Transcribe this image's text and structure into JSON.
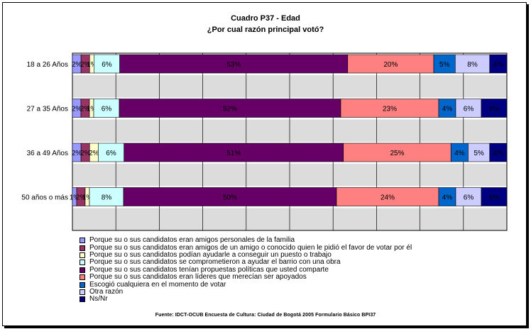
{
  "title": "Cuadro P37 - Edad",
  "subtitle": "¿Por cual razón principal votó?",
  "source": "Fuente: IDCT-OCUB Encuesta de Cultura: Ciudad de Bogotá 2005 Formulario Básico BPI37",
  "chart_data": {
    "type": "bar",
    "orientation": "horizontal",
    "stacked": "percent",
    "categories": [
      "18 a 26 Años",
      "27 a 35 Años",
      "36 a 49 Años",
      "50 años o más"
    ],
    "series": [
      {
        "name": "Porque su o sus candidatos eran amigos personales de la familia",
        "color": "#9999ff",
        "values": [
          2,
          2,
          2,
          1
        ],
        "labels": [
          "2%",
          "2%",
          "2%",
          "1%"
        ]
      },
      {
        "name": "Porque su o sus candidatos eran amigos de un amigo o conocido quien le pidió el favor de votar por él",
        "color": "#993366",
        "values": [
          2,
          2,
          2,
          2
        ],
        "labels": [
          "2%",
          "2%",
          "2%",
          "2%"
        ]
      },
      {
        "name": "Porque su o sus candidatos podían ayudarle a conseguir un puesto o trabajo",
        "color": "#ffffcc",
        "values": [
          1,
          1,
          2,
          1
        ],
        "labels": [
          "1%",
          "1%",
          "2%",
          "1%"
        ]
      },
      {
        "name": "Porque su o sus candidatos se comprometieron a ayudar el barrio con una obra",
        "color": "#ccffff",
        "values": [
          6,
          6,
          6,
          8
        ],
        "labels": [
          "6%",
          "6%",
          "6%",
          "8%"
        ]
      },
      {
        "name": "Porque su o sus candidatos tenían propuestas políticas que usted comparte",
        "color": "#660066",
        "values": [
          53,
          52,
          51,
          50
        ],
        "labels": [
          "53%",
          "52%",
          "51%",
          "50%"
        ]
      },
      {
        "name": "Porque su o sus candidatos eran líderes que merecían ser apoyados",
        "color": "#ff8080",
        "values": [
          20,
          23,
          25,
          24
        ],
        "labels": [
          "20%",
          "23%",
          "25%",
          "24%"
        ]
      },
      {
        "name": "Escogió cualquiera en el momento de votar",
        "color": "#0066cc",
        "values": [
          5,
          4,
          4,
          4
        ],
        "labels": [
          "5%",
          "4%",
          "4%",
          "4%"
        ]
      },
      {
        "name": "Otra razón",
        "color": "#ccccff",
        "values": [
          8,
          6,
          5,
          6
        ],
        "labels": [
          "8%",
          "6%",
          "5%",
          "6%"
        ]
      },
      {
        "name": "Ns/Nr",
        "color": "#000080",
        "values": [
          4,
          6,
          4,
          6
        ],
        "labels": [
          "4%",
          "6%",
          "4%",
          "6%"
        ]
      }
    ],
    "xlim": [
      0,
      100
    ],
    "gridlines": "vertical every 10%",
    "bands": "alternating gray rows",
    "legend_position": "bottom"
  }
}
